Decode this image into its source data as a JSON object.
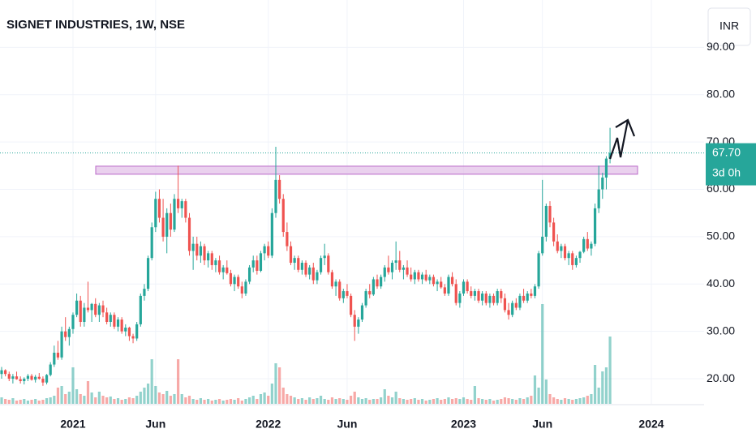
{
  "chart_data": {
    "type": "candlestick",
    "title": "SIGNET INDUSTRIES, 1W, NSE",
    "currency": "INR",
    "up_color": "#26a69a",
    "down_color": "#ef5350",
    "grid": true,
    "ylim": [
      14.7,
      100
    ],
    "yticks": [
      {
        "value": 20,
        "label": "20.00"
      },
      {
        "value": 30,
        "label": "30.00"
      },
      {
        "value": 40,
        "label": "40.00"
      },
      {
        "value": 50,
        "label": "50.00"
      },
      {
        "value": 60,
        "label": "60.00"
      },
      {
        "value": 70,
        "label": "70.00"
      },
      {
        "value": 80,
        "label": "80.00"
      },
      {
        "value": 90,
        "label": "90.00"
      }
    ],
    "last_price": 67.7,
    "last_price_label": "67.70",
    "countdown": "3d 0h",
    "zone": [
      63.2,
      64.9
    ],
    "categories": [
      null,
      null,
      null,
      null,
      null,
      null,
      null,
      null,
      null,
      null,
      null,
      null,
      null,
      null,
      null,
      null,
      null,
      null,
      null,
      "2021",
      null,
      null,
      null,
      null,
      null,
      null,
      null,
      null,
      null,
      null,
      null,
      null,
      null,
      null,
      null,
      null,
      null,
      null,
      null,
      null,
      null,
      "Jun",
      null,
      null,
      null,
      null,
      null,
      null,
      null,
      null,
      null,
      null,
      null,
      null,
      null,
      null,
      null,
      null,
      null,
      null,
      null,
      null,
      null,
      null,
      null,
      null,
      null,
      null,
      null,
      null,
      null,
      "2022",
      null,
      null,
      null,
      null,
      null,
      null,
      null,
      null,
      null,
      null,
      null,
      null,
      null,
      null,
      null,
      null,
      null,
      null,
      null,
      null,
      "Jun",
      null,
      null,
      null,
      null,
      null,
      null,
      null,
      null,
      null,
      null,
      null,
      null,
      null,
      null,
      null,
      null,
      null,
      null,
      null,
      null,
      null,
      null,
      null,
      null,
      null,
      null,
      null,
      null,
      null,
      null,
      "2023",
      null,
      null,
      null,
      null,
      null,
      null,
      null,
      null,
      null,
      null,
      null,
      null,
      null,
      null,
      null,
      null,
      null,
      null,
      null,
      null,
      "Jun",
      null,
      null,
      null,
      null,
      null,
      null,
      null,
      null,
      null,
      null,
      null,
      null,
      null,
      null,
      null,
      null,
      null,
      null,
      null,
      null,
      null,
      null,
      null,
      null,
      null,
      null,
      null,
      null,
      "2024"
    ],
    "ohlc": [
      [
        21,
        22.5,
        20,
        21.8
      ],
      [
        21.8,
        22,
        20.5,
        21
      ],
      [
        21,
        21.5,
        19.5,
        20
      ],
      [
        20,
        21,
        19,
        20.5
      ],
      [
        20.5,
        21.5,
        19.8,
        19.9
      ],
      [
        19.9,
        20.5,
        19,
        19.5
      ],
      [
        19.5,
        20.3,
        18.8,
        20
      ],
      [
        20,
        21,
        19.5,
        20.6
      ],
      [
        20.6,
        21,
        19.6,
        19.8
      ],
      [
        19.8,
        20.8,
        19.2,
        20.4
      ],
      [
        20.4,
        21.2,
        19.8,
        20
      ],
      [
        20,
        20.5,
        18.5,
        19.2
      ],
      [
        19.2,
        21,
        18.8,
        20.8
      ],
      [
        20.8,
        23.5,
        20.5,
        23
      ],
      [
        23,
        27,
        22.5,
        25.5
      ],
      [
        25.5,
        28,
        24,
        24.5
      ],
      [
        24.5,
        31,
        24,
        30
      ],
      [
        30,
        33,
        28,
        28.8
      ],
      [
        28.8,
        31,
        27,
        30.5
      ],
      [
        30.5,
        34,
        29.5,
        33.5
      ],
      [
        33.5,
        38,
        33,
        36.5
      ],
      [
        36.5,
        37.5,
        31,
        32
      ],
      [
        32,
        36,
        31,
        35
      ],
      [
        35,
        40.5,
        34,
        34.5
      ],
      [
        34.5,
        36,
        32,
        35.8
      ],
      [
        35.8,
        37,
        33,
        33.5
      ],
      [
        33.5,
        36,
        32,
        35.5
      ],
      [
        35.5,
        36.5,
        33,
        34
      ],
      [
        34,
        35,
        31.5,
        32
      ],
      [
        32,
        34,
        31,
        33.5
      ],
      [
        33.5,
        34,
        30.5,
        31
      ],
      [
        31,
        33,
        30,
        32.5
      ],
      [
        32.5,
        33,
        29.5,
        30
      ],
      [
        30,
        31.5,
        29,
        30.8
      ],
      [
        30.8,
        31,
        28,
        29
      ],
      [
        29,
        29.5,
        27.5,
        28.5
      ],
      [
        28.5,
        32,
        28,
        31.5
      ],
      [
        31.5,
        38,
        31,
        37.5
      ],
      [
        37.5,
        40,
        36.5,
        39
      ],
      [
        39,
        46,
        38.5,
        45.5
      ],
      [
        45.5,
        53,
        45,
        52
      ],
      [
        52,
        59.5,
        51,
        58
      ],
      [
        58,
        60,
        53,
        54
      ],
      [
        54,
        58,
        49,
        50
      ],
      [
        50,
        56,
        46.5,
        55
      ],
      [
        55,
        57,
        50,
        51.5
      ],
      [
        51.5,
        59,
        51,
        58
      ],
      [
        58,
        65,
        55,
        56
      ],
      [
        56,
        58,
        54,
        57.5
      ],
      [
        57.5,
        58,
        53,
        54
      ],
      [
        54,
        55,
        46,
        47
      ],
      [
        47,
        50,
        43,
        48.5
      ],
      [
        48.5,
        50,
        45,
        46
      ],
      [
        46,
        49,
        44.5,
        48
      ],
      [
        48,
        48.5,
        44,
        45
      ],
      [
        45,
        47,
        43.5,
        46.5
      ],
      [
        46.5,
        47,
        43,
        44
      ],
      [
        44,
        45.5,
        42.5,
        45
      ],
      [
        45,
        46,
        42,
        42.5
      ],
      [
        42.5,
        44,
        41,
        43.5
      ],
      [
        43.5,
        45,
        42,
        42.3
      ],
      [
        42.3,
        43,
        39.5,
        40
      ],
      [
        40,
        42,
        38.5,
        41.5
      ],
      [
        41.5,
        42,
        39,
        39.5
      ],
      [
        39.5,
        40.5,
        37,
        38
      ],
      [
        38,
        41,
        37.5,
        40.5
      ],
      [
        40.5,
        44,
        40,
        43.5
      ],
      [
        43.5,
        46,
        42.5,
        45
      ],
      [
        45,
        46,
        42,
        42.8
      ],
      [
        42.8,
        47,
        42.5,
        46.5
      ],
      [
        46.5,
        48.5,
        45,
        48
      ],
      [
        48,
        49,
        45.5,
        46
      ],
      [
        46,
        56,
        45.5,
        55
      ],
      [
        55,
        69,
        54,
        62
      ],
      [
        62,
        63,
        57,
        58
      ],
      [
        58,
        59,
        50,
        51
      ],
      [
        51,
        53,
        47,
        48
      ],
      [
        48,
        49,
        44,
        44.5
      ],
      [
        44.5,
        46,
        43,
        45.5
      ],
      [
        45.5,
        46,
        42.5,
        43
      ],
      [
        43,
        45,
        42,
        44.5
      ],
      [
        44.5,
        45,
        41.5,
        42
      ],
      [
        42,
        44,
        41,
        43.5
      ],
      [
        43.5,
        44.5,
        40,
        40.8
      ],
      [
        40.8,
        43,
        40,
        42.5
      ],
      [
        42.5,
        46,
        42,
        45.5
      ],
      [
        45.5,
        48.5,
        44,
        46
      ],
      [
        46,
        46.5,
        42,
        42.5
      ],
      [
        42.5,
        43,
        39,
        39.5
      ],
      [
        39.5,
        41,
        37.5,
        40.5
      ],
      [
        40.5,
        41,
        36.5,
        37
      ],
      [
        37,
        39,
        36,
        38.5
      ],
      [
        38.5,
        40,
        37,
        37.5
      ],
      [
        37.5,
        38,
        33,
        33.5
      ],
      [
        33.5,
        34.5,
        28,
        31
      ],
      [
        31,
        33,
        29.5,
        32.5
      ],
      [
        32.5,
        36,
        32,
        35.5
      ],
      [
        35.5,
        39,
        35,
        38.5
      ],
      [
        38.5,
        40,
        37,
        37.8
      ],
      [
        37.8,
        41.5,
        37.5,
        41
      ],
      [
        41,
        42,
        39,
        39.5
      ],
      [
        39.5,
        42,
        39,
        41.5
      ],
      [
        41.5,
        44,
        40.5,
        43.5
      ],
      [
        43.5,
        46,
        42,
        42.5
      ],
      [
        42.5,
        45,
        41,
        44.5
      ],
      [
        44.5,
        49,
        43,
        45
      ],
      [
        45,
        47,
        42.5,
        43
      ],
      [
        43,
        44,
        41,
        43.5
      ],
      [
        43.5,
        45,
        41.5,
        42
      ],
      [
        42,
        43.5,
        40.5,
        41
      ],
      [
        41,
        43,
        40,
        42.5
      ],
      [
        42.5,
        43,
        40.5,
        41
      ],
      [
        41,
        42.5,
        40,
        42
      ],
      [
        42,
        43,
        40.5,
        40.8
      ],
      [
        40.8,
        42,
        40,
        41.5
      ],
      [
        41.5,
        42,
        39.5,
        40
      ],
      [
        40,
        41,
        38.5,
        40.5
      ],
      [
        40.5,
        41.5,
        39,
        39.3
      ],
      [
        39.3,
        40,
        37.5,
        38
      ],
      [
        38,
        42,
        37.5,
        41.5
      ],
      [
        41.5,
        42.5,
        39.5,
        40
      ],
      [
        40,
        41,
        35.5,
        36
      ],
      [
        36,
        38.5,
        35,
        38
      ],
      [
        38,
        41,
        37.5,
        40.5
      ],
      [
        40.5,
        41,
        38,
        38.5
      ],
      [
        38.5,
        39.5,
        37,
        37.5
      ],
      [
        37.5,
        39,
        36.5,
        38.5
      ],
      [
        38.5,
        39,
        36,
        36.5
      ],
      [
        36.5,
        38.5,
        35.5,
        38
      ],
      [
        38,
        38.5,
        35.5,
        36
      ],
      [
        36,
        38,
        35,
        37.5
      ],
      [
        37.5,
        38,
        35.5,
        36
      ],
      [
        36,
        39,
        35.5,
        38.5
      ],
      [
        38.5,
        39,
        36,
        37
      ],
      [
        37,
        38,
        34,
        34.5
      ],
      [
        34.5,
        36,
        32.5,
        33.5
      ],
      [
        33.5,
        36.5,
        33,
        36
      ],
      [
        36,
        37,
        34.5,
        35
      ],
      [
        35,
        38,
        34.5,
        37.5
      ],
      [
        37.5,
        39,
        36,
        36.5
      ],
      [
        36.5,
        38.5,
        36,
        38
      ],
      [
        38,
        39,
        37,
        37.5
      ],
      [
        37.5,
        40,
        37,
        39.5
      ],
      [
        39.5,
        47,
        39,
        46.5
      ],
      [
        46.5,
        62,
        46,
        50
      ],
      [
        50,
        57,
        49,
        56.5
      ],
      [
        56.5,
        57.5,
        52,
        53
      ],
      [
        53,
        54,
        48,
        49
      ],
      [
        49,
        50.5,
        46.5,
        47
      ],
      [
        47,
        48.5,
        45.5,
        48
      ],
      [
        48,
        48.5,
        45,
        45.5
      ],
      [
        45.5,
        47,
        44,
        46.5
      ],
      [
        46.5,
        47,
        43,
        44
      ],
      [
        44,
        46,
        43.5,
        45.5
      ],
      [
        45.5,
        47,
        44.5,
        46.8
      ],
      [
        46.8,
        50,
        46.5,
        49.5
      ],
      [
        49.5,
        51,
        47,
        47.5
      ],
      [
        47.5,
        49,
        46,
        48.5
      ],
      [
        48.5,
        57,
        48,
        56
      ],
      [
        56,
        65,
        55,
        60
      ],
      [
        60,
        63.5,
        58,
        62.5
      ],
      [
        62.5,
        67,
        60,
        66.5
      ],
      [
        66.5,
        73,
        65.5,
        67.7
      ],
      null,
      null,
      null,
      null,
      null,
      null,
      null,
      null,
      null,
      null,
      null
    ],
    "volume": [
      8,
      6,
      5,
      7,
      4,
      5,
      6,
      4,
      5,
      6,
      4,
      5,
      7,
      8,
      10,
      20,
      22,
      12,
      15,
      45,
      18,
      12,
      10,
      28,
      14,
      8,
      15,
      10,
      8,
      9,
      6,
      7,
      5,
      6,
      8,
      7,
      10,
      15,
      20,
      25,
      55,
      22,
      14,
      12,
      16,
      10,
      12,
      55,
      12,
      8,
      10,
      6,
      5,
      7,
      5,
      6,
      4,
      5,
      6,
      4,
      5,
      6,
      5,
      7,
      4,
      6,
      8,
      10,
      6,
      12,
      14,
      10,
      25,
      50,
      45,
      20,
      12,
      10,
      8,
      6,
      7,
      5,
      8,
      6,
      7,
      10,
      6,
      5,
      8,
      6,
      7,
      6,
      5,
      10,
      15,
      8,
      6,
      7,
      5,
      6,
      6,
      8,
      18,
      10,
      8,
      15,
      7,
      6,
      5,
      6,
      7,
      5,
      6,
      4,
      5,
      6,
      7,
      5,
      6,
      8,
      6,
      7,
      6,
      8,
      6,
      5,
      22,
      7,
      6,
      5,
      6,
      4,
      5,
      6,
      8,
      7,
      6,
      5,
      7,
      6,
      8,
      10,
      35,
      20,
      123,
      30,
      12,
      8,
      6,
      5,
      7,
      6,
      5,
      6,
      7,
      8,
      10,
      12,
      48,
      20,
      40,
      45,
      83,
      null,
      null,
      null,
      null,
      null,
      null,
      null,
      null,
      null,
      null,
      null
    ]
  }
}
